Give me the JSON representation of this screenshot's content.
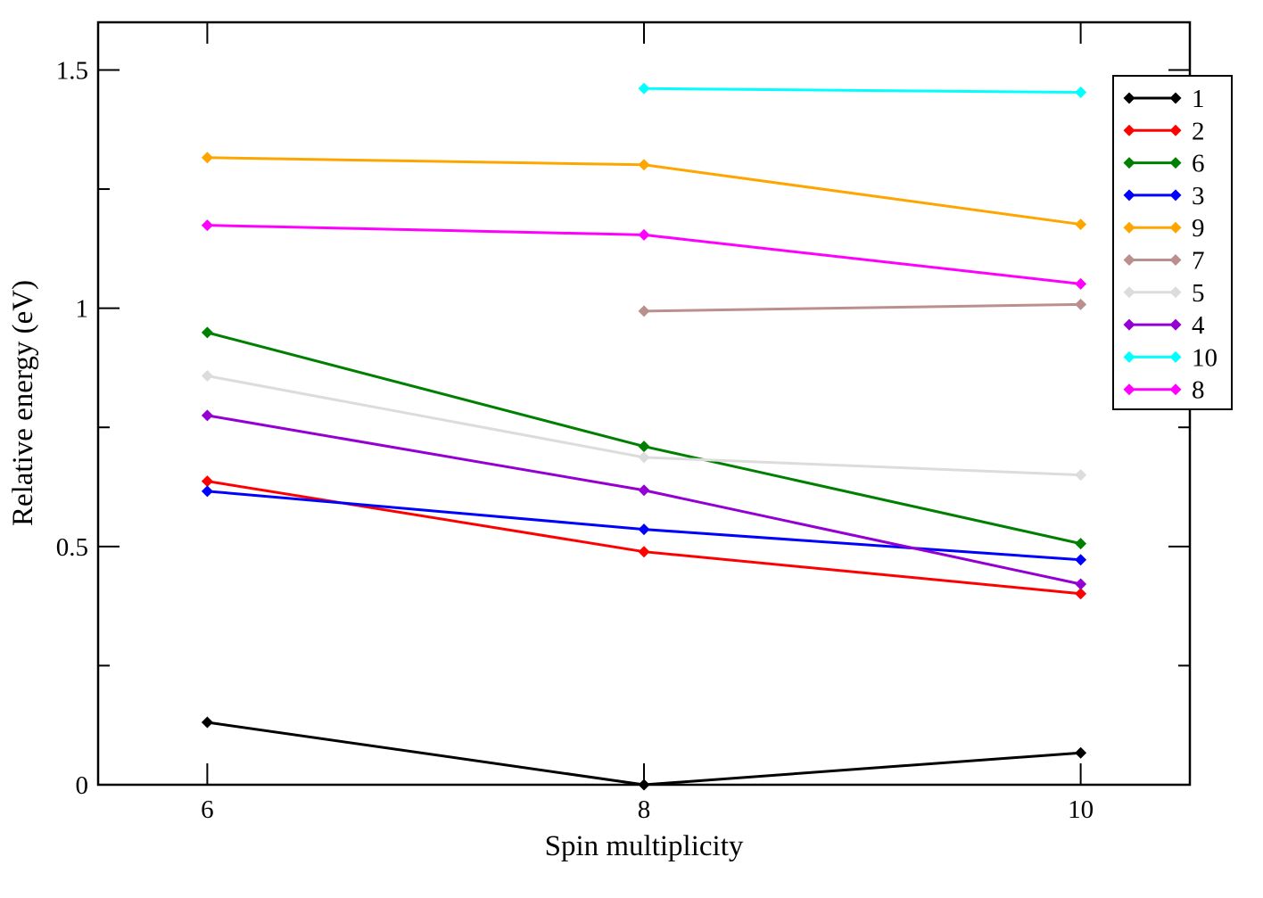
{
  "chart_data": {
    "type": "line",
    "title": "",
    "xlabel": "Spin multiplicity",
    "ylabel": "Relative energy (eV)",
    "xlim": [
      5.5,
      10.5
    ],
    "ylim": [
      0,
      1.6
    ],
    "xticks": [
      6,
      8,
      10
    ],
    "xtick_labels": [
      "6",
      "8",
      "10"
    ],
    "yticks_major": [
      0,
      0.5,
      1,
      1.5
    ],
    "ytick_labels": [
      "0",
      "0.5",
      "1",
      "1.5"
    ],
    "yticks_minor": [
      0.25,
      0.75,
      1.25
    ],
    "grid": false,
    "legend_position": "top-right",
    "marker": "diamond",
    "series": [
      {
        "name": "1",
        "color": "#000000",
        "x": [
          6,
          8,
          10
        ],
        "y": [
          0.131,
          0.0,
          0.067
        ]
      },
      {
        "name": "2",
        "color": "#ff0000",
        "x": [
          6,
          8,
          10
        ],
        "y": [
          0.637,
          0.489,
          0.401
        ]
      },
      {
        "name": "6",
        "color": "#008000",
        "x": [
          6,
          8,
          10
        ],
        "y": [
          0.949,
          0.71,
          0.506
        ]
      },
      {
        "name": "3",
        "color": "#0000ff",
        "x": [
          6,
          8,
          10
        ],
        "y": [
          0.616,
          0.536,
          0.472
        ]
      },
      {
        "name": "9",
        "color": "#ffa500",
        "x": [
          6,
          8,
          10
        ],
        "y": [
          1.316,
          1.301,
          1.176
        ]
      },
      {
        "name": "7",
        "color": "#bc8f8f",
        "x": [
          8,
          10
        ],
        "y": [
          0.994,
          1.008
        ]
      },
      {
        "name": "5",
        "color": "#dcdcdc",
        "x": [
          6,
          8,
          10
        ],
        "y": [
          0.858,
          0.687,
          0.65
        ]
      },
      {
        "name": "4",
        "color": "#9400d3",
        "x": [
          6,
          8,
          10
        ],
        "y": [
          0.775,
          0.618,
          0.421
        ]
      },
      {
        "name": "10",
        "color": "#00ffff",
        "x": [
          8,
          10
        ],
        "y": [
          1.461,
          1.453
        ]
      },
      {
        "name": "8",
        "color": "#ff00ff",
        "x": [
          6,
          8,
          10
        ],
        "y": [
          1.174,
          1.154,
          1.051
        ]
      }
    ]
  }
}
